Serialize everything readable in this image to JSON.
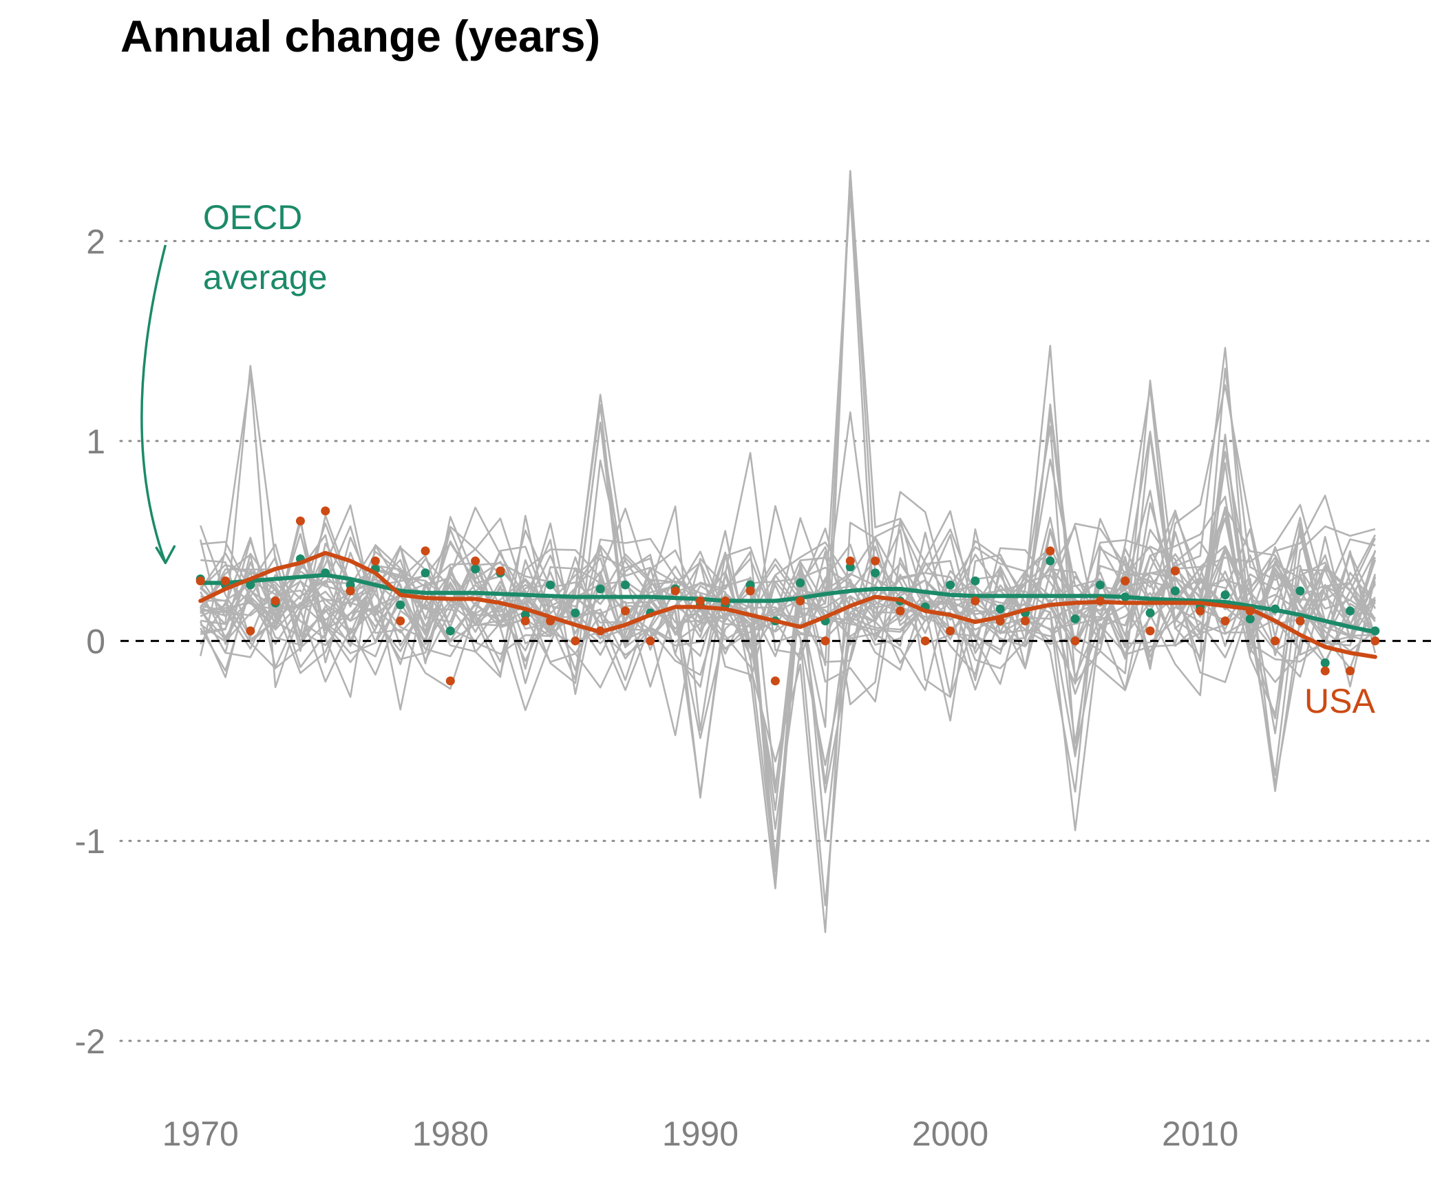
{
  "chart_data": {
    "type": "line",
    "title": "Annual change (years)",
    "xlabel": "",
    "ylabel": "",
    "xlim": [
      1966.8,
      2019.4
    ],
    "ylim": [
      -2.3,
      2.5
    ],
    "x_ticks": [
      1970,
      1980,
      1990,
      2000,
      2010
    ],
    "y_ticks": [
      2,
      1,
      0,
      -1,
      -2
    ],
    "y_tick_labels": [
      "2",
      "1",
      "0",
      "-1",
      "-2"
    ],
    "grid": "horizontal dotted",
    "zero_line": "dashed",
    "colors": {
      "oecd": "#1b8a68",
      "usa": "#cc4a14",
      "countries": "#b3b3b3",
      "grid": "#8c8c8c",
      "zero": "#000000"
    },
    "annotations": [
      {
        "series": "oecd",
        "lines": [
          "OECD",
          "average"
        ]
      },
      {
        "series": "usa",
        "lines": [
          "USA"
        ]
      }
    ],
    "series": [
      {
        "name": "OECD average",
        "role": "oecd",
        "x": [
          1970,
          1971,
          1972,
          1973,
          1974,
          1975,
          1976,
          1977,
          1978,
          1979,
          1980,
          1981,
          1982,
          1983,
          1984,
          1985,
          1986,
          1987,
          1988,
          1989,
          1990,
          1991,
          1992,
          1993,
          1994,
          1995,
          1996,
          1997,
          1998,
          1999,
          2000,
          2001,
          2002,
          2003,
          2004,
          2005,
          2006,
          2007,
          2008,
          2009,
          2010,
          2011,
          2012,
          2013,
          2014,
          2015,
          2016,
          2017
        ],
        "points": [
          0.31,
          0.28,
          0.28,
          0.19,
          0.41,
          0.34,
          0.28,
          0.36,
          0.18,
          0.34,
          0.05,
          0.36,
          0.34,
          0.13,
          0.28,
          0.14,
          0.26,
          0.28,
          0.14,
          0.26,
          0.18,
          0.18,
          0.28,
          0.1,
          0.29,
          0.1,
          0.37,
          0.34,
          0.2,
          0.17,
          0.28,
          0.3,
          0.16,
          0.14,
          0.4,
          0.11,
          0.28,
          0.22,
          0.14,
          0.25,
          0.17,
          0.23,
          0.11,
          0.16,
          0.25,
          -0.11,
          0.15,
          0.05
        ],
        "trend": [
          0.29,
          0.29,
          0.3,
          0.31,
          0.32,
          0.33,
          0.31,
          0.28,
          0.25,
          0.24,
          0.24,
          0.24,
          0.235,
          0.23,
          0.225,
          0.22,
          0.22,
          0.22,
          0.22,
          0.215,
          0.21,
          0.2,
          0.2,
          0.2,
          0.215,
          0.235,
          0.25,
          0.26,
          0.26,
          0.245,
          0.23,
          0.225,
          0.225,
          0.225,
          0.225,
          0.225,
          0.225,
          0.22,
          0.21,
          0.205,
          0.2,
          0.195,
          0.175,
          0.155,
          0.13,
          0.1,
          0.07,
          0.045
        ]
      },
      {
        "name": "USA",
        "role": "usa",
        "x": [
          1970,
          1971,
          1972,
          1973,
          1974,
          1975,
          1976,
          1977,
          1978,
          1979,
          1980,
          1981,
          1982,
          1983,
          1984,
          1985,
          1986,
          1987,
          1988,
          1989,
          1990,
          1991,
          1992,
          1993,
          1994,
          1995,
          1996,
          1997,
          1998,
          1999,
          2000,
          2001,
          2002,
          2003,
          2004,
          2005,
          2006,
          2007,
          2008,
          2009,
          2010,
          2011,
          2012,
          2013,
          2014,
          2015,
          2016,
          2017
        ],
        "points": [
          0.3,
          0.3,
          0.05,
          0.2,
          0.6,
          0.65,
          0.25,
          0.4,
          0.1,
          0.45,
          -0.2,
          0.4,
          0.35,
          0.1,
          0.1,
          0.0,
          0.05,
          0.15,
          0.0,
          0.25,
          0.2,
          0.2,
          0.25,
          -0.2,
          0.2,
          0.0,
          0.4,
          0.4,
          0.15,
          0.0,
          0.05,
          0.2,
          0.1,
          0.1,
          0.45,
          0.0,
          0.2,
          0.3,
          0.05,
          0.35,
          0.15,
          0.1,
          0.15,
          0.0,
          0.1,
          -0.15,
          -0.15,
          0.0
        ],
        "trend": [
          0.2,
          0.26,
          0.31,
          0.36,
          0.39,
          0.44,
          0.4,
          0.34,
          0.23,
          0.215,
          0.21,
          0.21,
          0.19,
          0.16,
          0.12,
          0.08,
          0.045,
          0.08,
          0.13,
          0.17,
          0.17,
          0.16,
          0.13,
          0.1,
          0.07,
          0.12,
          0.175,
          0.22,
          0.205,
          0.15,
          0.13,
          0.095,
          0.12,
          0.155,
          0.18,
          0.19,
          0.195,
          0.19,
          0.19,
          0.19,
          0.19,
          0.175,
          0.16,
          0.1,
          0.03,
          -0.03,
          -0.06,
          -0.08
        ]
      }
    ]
  }
}
